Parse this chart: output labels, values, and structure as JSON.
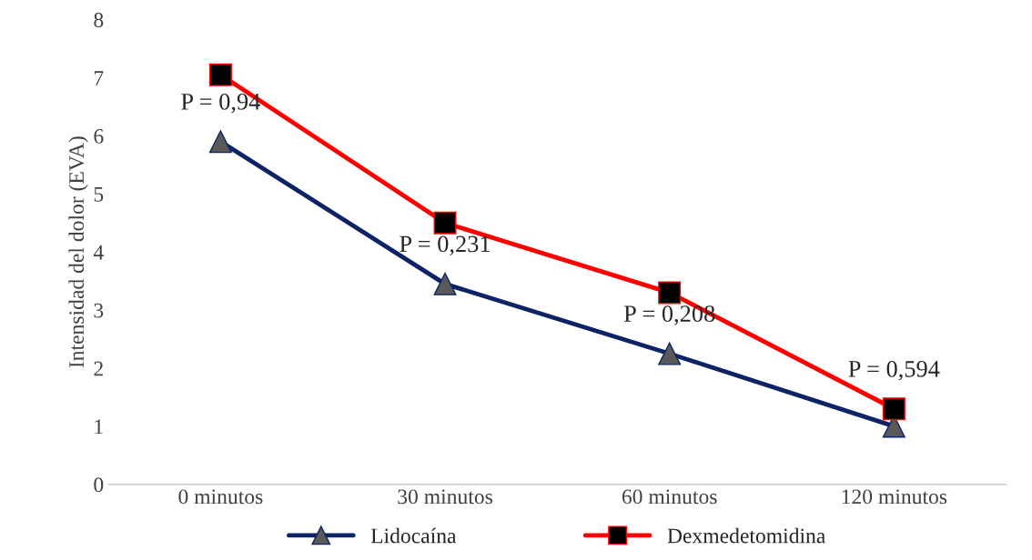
{
  "chart_data": {
    "type": "line",
    "ylabel": "Intensidad del dolor (EVA)",
    "categories": [
      "0 minutos",
      "30 minutos",
      "60 minutos",
      "120 minutos"
    ],
    "series": [
      {
        "name": "Lidocaína",
        "color": "#0d2366",
        "marker": "triangle",
        "values": [
          5.9,
          3.45,
          2.25,
          1.0
        ]
      },
      {
        "name": "Dexmedetomidina",
        "color": "#ff0000",
        "marker": "square",
        "values": [
          7.05,
          4.5,
          3.3,
          1.3
        ]
      }
    ],
    "annotations": [
      "P = 0,94",
      "P = 0,231",
      "P = 0,208",
      "P = 0,594"
    ],
    "ylim": [
      0,
      8
    ],
    "yticks": [
      0,
      1,
      2,
      3,
      4,
      5,
      6,
      7,
      8
    ],
    "grid": false,
    "legend": "bottom"
  }
}
